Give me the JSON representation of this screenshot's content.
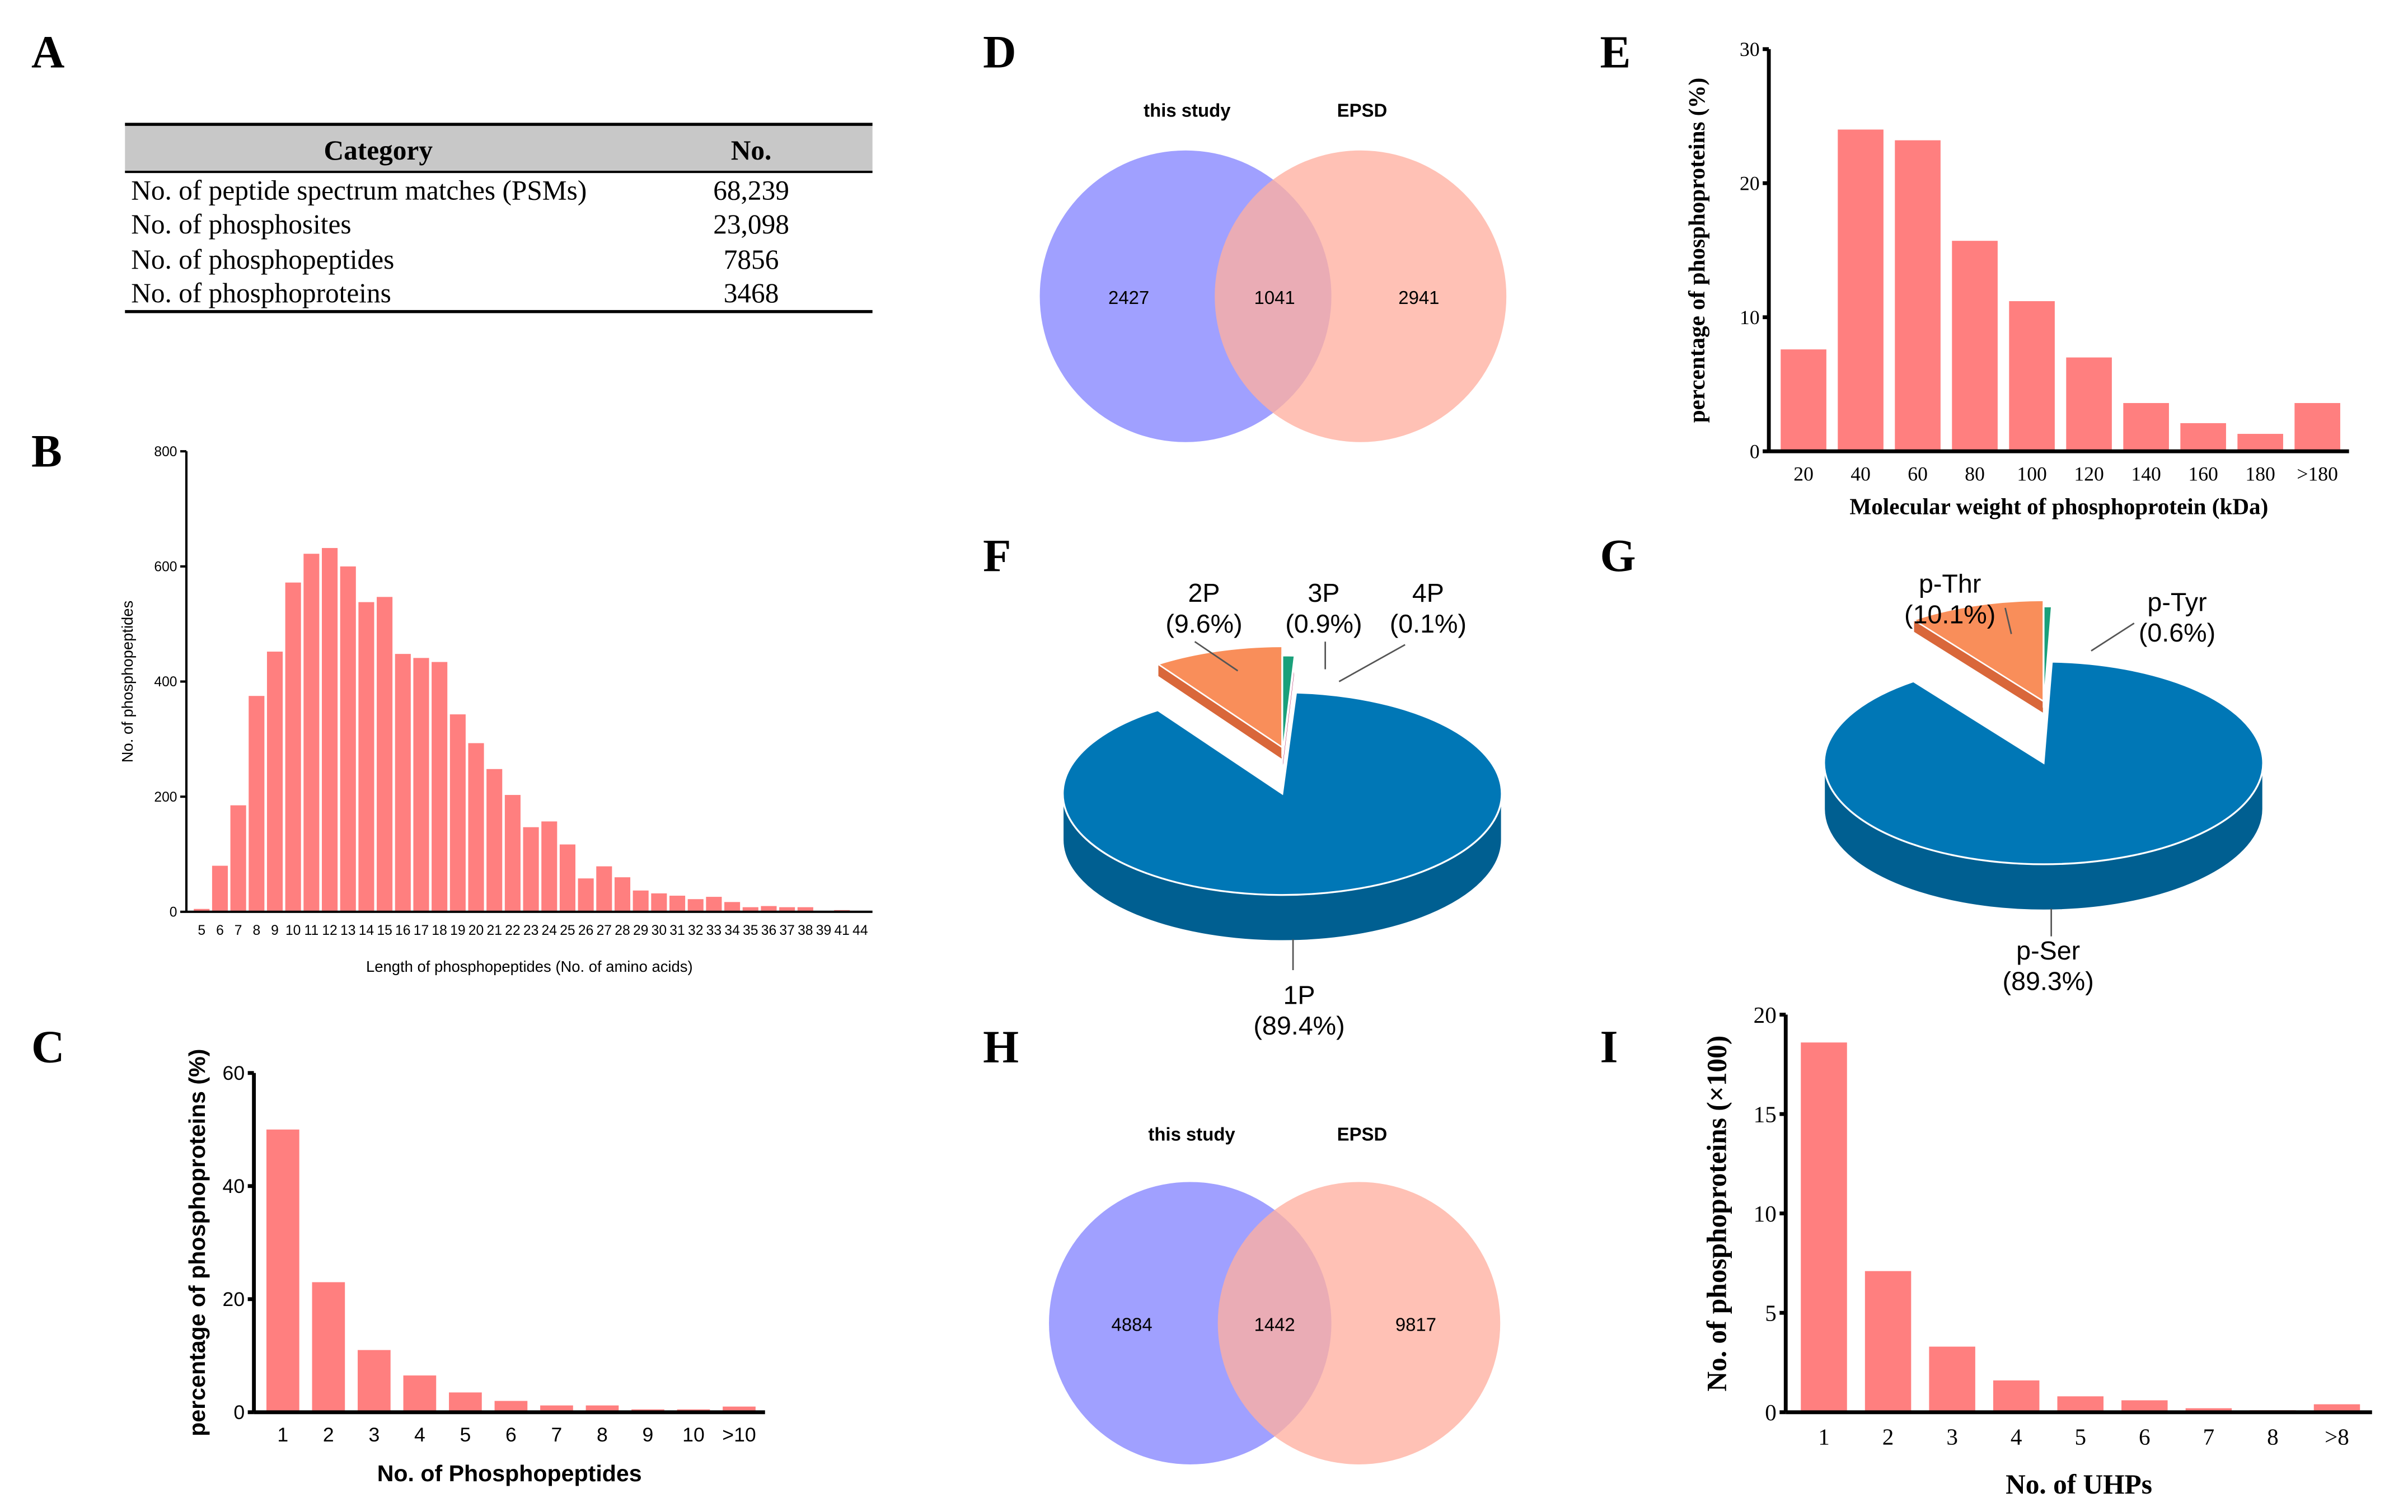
{
  "panel_labels": [
    "A",
    "B",
    "C",
    "D",
    "E",
    "F",
    "G",
    "H",
    "I"
  ],
  "colors": {
    "bar": "#ff7f7f",
    "venn_left": "#a0a0ff",
    "venn_right": "#ffb0a0",
    "pie_main": "#0077b6",
    "pie_second": "#f98e5a",
    "pie_third": "#1aa07a",
    "pie_fourth": "#e0126d"
  },
  "table": {
    "headers": [
      "Category",
      "No."
    ],
    "rows": [
      [
        "No. of peptide spectrum matches (PSMs)",
        "68,239"
      ],
      [
        "No. of  phosphosites",
        "23,098"
      ],
      [
        "No. of phosphopeptides",
        "7856"
      ],
      [
        "No. of phosphoproteins",
        "3468"
      ]
    ]
  },
  "chart_data": [
    {
      "panel": "B",
      "type": "bar",
      "xlabel": "Length of phosphopeptides (No. of amino acids)",
      "ylabel": "No. of phosphopeptides",
      "ylim": [
        0,
        800
      ],
      "yticks": [
        0,
        200,
        400,
        600,
        800
      ],
      "categories": [
        "5",
        "6",
        "7",
        "8",
        "9",
        "10",
        "11",
        "12",
        "13",
        "14",
        "15",
        "16",
        "17",
        "18",
        "19",
        "20",
        "21",
        "22",
        "23",
        "24",
        "25",
        "26",
        "27",
        "28",
        "29",
        "30",
        "31",
        "32",
        "33",
        "34",
        "35",
        "36",
        "37",
        "38",
        "39",
        "41",
        "44"
      ],
      "values": [
        5,
        80,
        185,
        375,
        452,
        572,
        622,
        632,
        600,
        538,
        547,
        448,
        441,
        434,
        343,
        293,
        248,
        203,
        147,
        157,
        117,
        58,
        79,
        60,
        37,
        32,
        28,
        22,
        26,
        17,
        8,
        10,
        8,
        8,
        1,
        3,
        0
      ]
    },
    {
      "panel": "C",
      "type": "bar",
      "xlabel": "No. of Phosphopeptides",
      "ylabel": "percentage of phosphoproteins (%)",
      "ylim": [
        0,
        60
      ],
      "yticks": [
        0,
        20,
        40,
        60
      ],
      "categories": [
        "1",
        "2",
        "3",
        "4",
        "5",
        "6",
        "7",
        "8",
        "9",
        "10",
        ">10"
      ],
      "values": [
        50,
        23,
        11,
        6.5,
        3.5,
        2,
        1.2,
        1.2,
        0.5,
        0.5,
        1
      ]
    },
    {
      "panel": "E",
      "type": "bar",
      "xlabel": "Molecular weight of phosphoprotein (kDa)",
      "ylabel": "percentage of phosphoproteins (%)",
      "ylim": [
        0,
        30
      ],
      "yticks": [
        0,
        10,
        20,
        30
      ],
      "categories": [
        "20",
        "40",
        "60",
        "80",
        "100",
        "120",
        "140",
        "160",
        "180",
        ">180"
      ],
      "values": [
        7.6,
        24,
        23.2,
        15.7,
        11.2,
        7.0,
        3.6,
        2.1,
        1.3,
        3.6
      ]
    },
    {
      "panel": "I",
      "type": "bar",
      "xlabel": "No. of UHPs",
      "ylabel": "No. of phosphoproteins (×100)",
      "ylim": [
        0,
        20
      ],
      "yticks": [
        0,
        5,
        10,
        15,
        20
      ],
      "categories": [
        "1",
        "2",
        "3",
        "4",
        "5",
        "6",
        "7",
        "8",
        ">8"
      ],
      "values": [
        18.6,
        7.1,
        3.3,
        1.6,
        0.8,
        0.6,
        0.2,
        0.1,
        0.4
      ]
    },
    {
      "panel": "F",
      "type": "pie",
      "slices": [
        {
          "label": "1P",
          "pct": "(89.4%)",
          "value": 89.4
        },
        {
          "label": "2P",
          "pct": "(9.6%)",
          "value": 9.6
        },
        {
          "label": "3P",
          "pct": "(0.9%)",
          "value": 0.9
        },
        {
          "label": "4P",
          "pct": "(0.1%)",
          "value": 0.1
        }
      ]
    },
    {
      "panel": "G",
      "type": "pie",
      "slices": [
        {
          "label": "p-Ser",
          "pct": "(89.3%)",
          "value": 89.3
        },
        {
          "label": "p-Thr",
          "pct": "(10.1%)",
          "value": 10.1
        },
        {
          "label": "p-Tyr",
          "pct": "(0.6%)",
          "value": 0.6
        }
      ]
    }
  ],
  "venn_d": {
    "left_label": "this study",
    "right_label": "EPSD",
    "left_only": "2427",
    "overlap": "1041",
    "right_only": "2941"
  },
  "venn_h": {
    "left_label": "this study",
    "right_label": "EPSD",
    "left_only": "4884",
    "overlap": "1442",
    "right_only": "9817"
  }
}
